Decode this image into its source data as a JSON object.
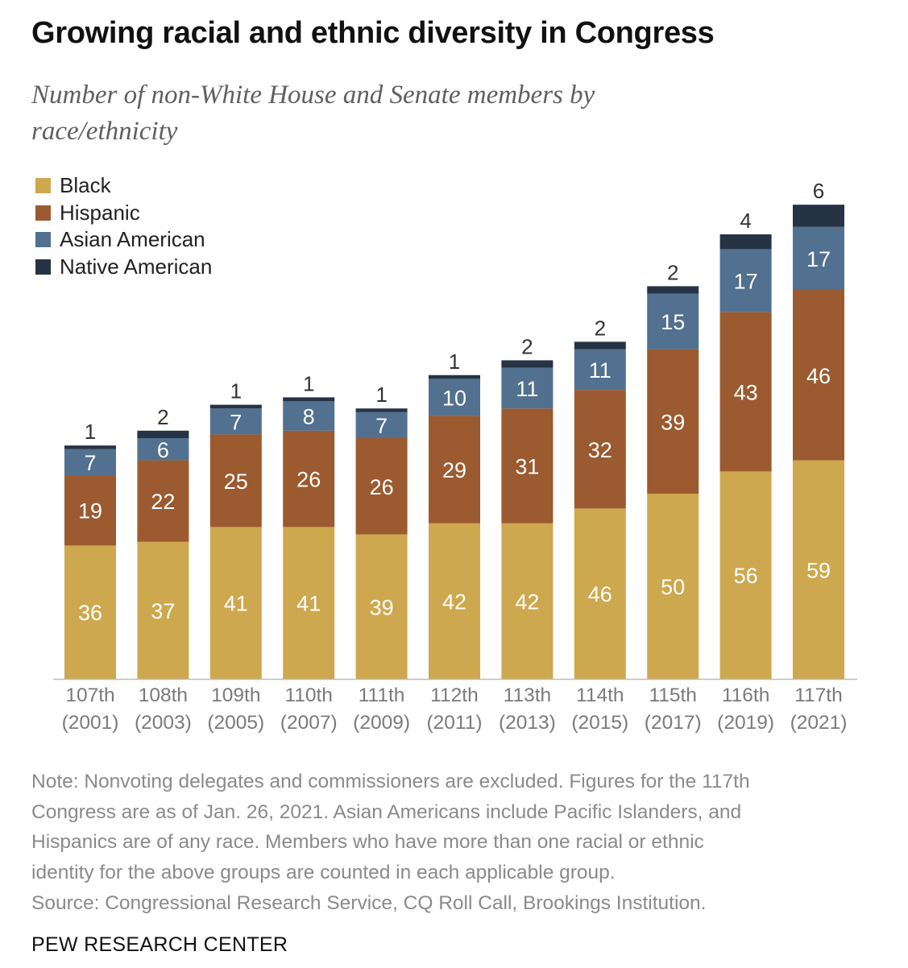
{
  "title": "Growing racial and ethnic diversity in Congress",
  "subtitle": "Number of non-White House and Senate members by race/ethnicity",
  "colors": {
    "black": "#cda84e",
    "hispanic": "#9b5a30",
    "asian": "#52708f",
    "native": "#253344",
    "axis": "#bdbdbd",
    "tick_text": "#7a7a7a"
  },
  "chart_data": {
    "type": "bar",
    "stacked": true,
    "categories": [
      [
        "107th",
        "(2001)"
      ],
      [
        "108th",
        "(2003)"
      ],
      [
        "109th",
        "(2005)"
      ],
      [
        "110th",
        "(2007)"
      ],
      [
        "111th",
        "(2009)"
      ],
      [
        "112th",
        "(2011)"
      ],
      [
        "113th",
        "(2013)"
      ],
      [
        "114th",
        "(2015)"
      ],
      [
        "115th",
        "(2017)"
      ],
      [
        "116th",
        "(2019)"
      ],
      [
        "117th",
        "(2021)"
      ]
    ],
    "series": [
      {
        "name": "Black",
        "color_key": "black",
        "values": [
          36,
          37,
          41,
          41,
          39,
          42,
          42,
          46,
          50,
          56,
          59
        ]
      },
      {
        "name": "Hispanic",
        "color_key": "hispanic",
        "values": [
          19,
          22,
          25,
          26,
          26,
          29,
          31,
          32,
          39,
          43,
          46
        ]
      },
      {
        "name": "Asian American",
        "color_key": "asian",
        "values": [
          7,
          6,
          7,
          8,
          7,
          10,
          11,
          11,
          15,
          17,
          17
        ]
      },
      {
        "name": "Native American",
        "color_key": "native",
        "values": [
          1,
          2,
          1,
          1,
          1,
          1,
          2,
          2,
          2,
          4,
          6
        ]
      }
    ],
    "legend_position": "top-left",
    "grid": false,
    "ylim": [
      0,
      130
    ]
  },
  "notes": [
    "Note: Nonvoting delegates and commissioners are excluded. Figures for the 117th",
    "Congress are as of Jan. 26, 2021. Asian Americans include Pacific Islanders, and",
    "Hispanics are of any race. Members who have more than one racial or ethnic",
    "identity for the above groups are counted in each applicable group.",
    "Source: Congressional Research Service, CQ Roll Call, Brookings Institution."
  ],
  "footer": "PEW RESEARCH CENTER"
}
